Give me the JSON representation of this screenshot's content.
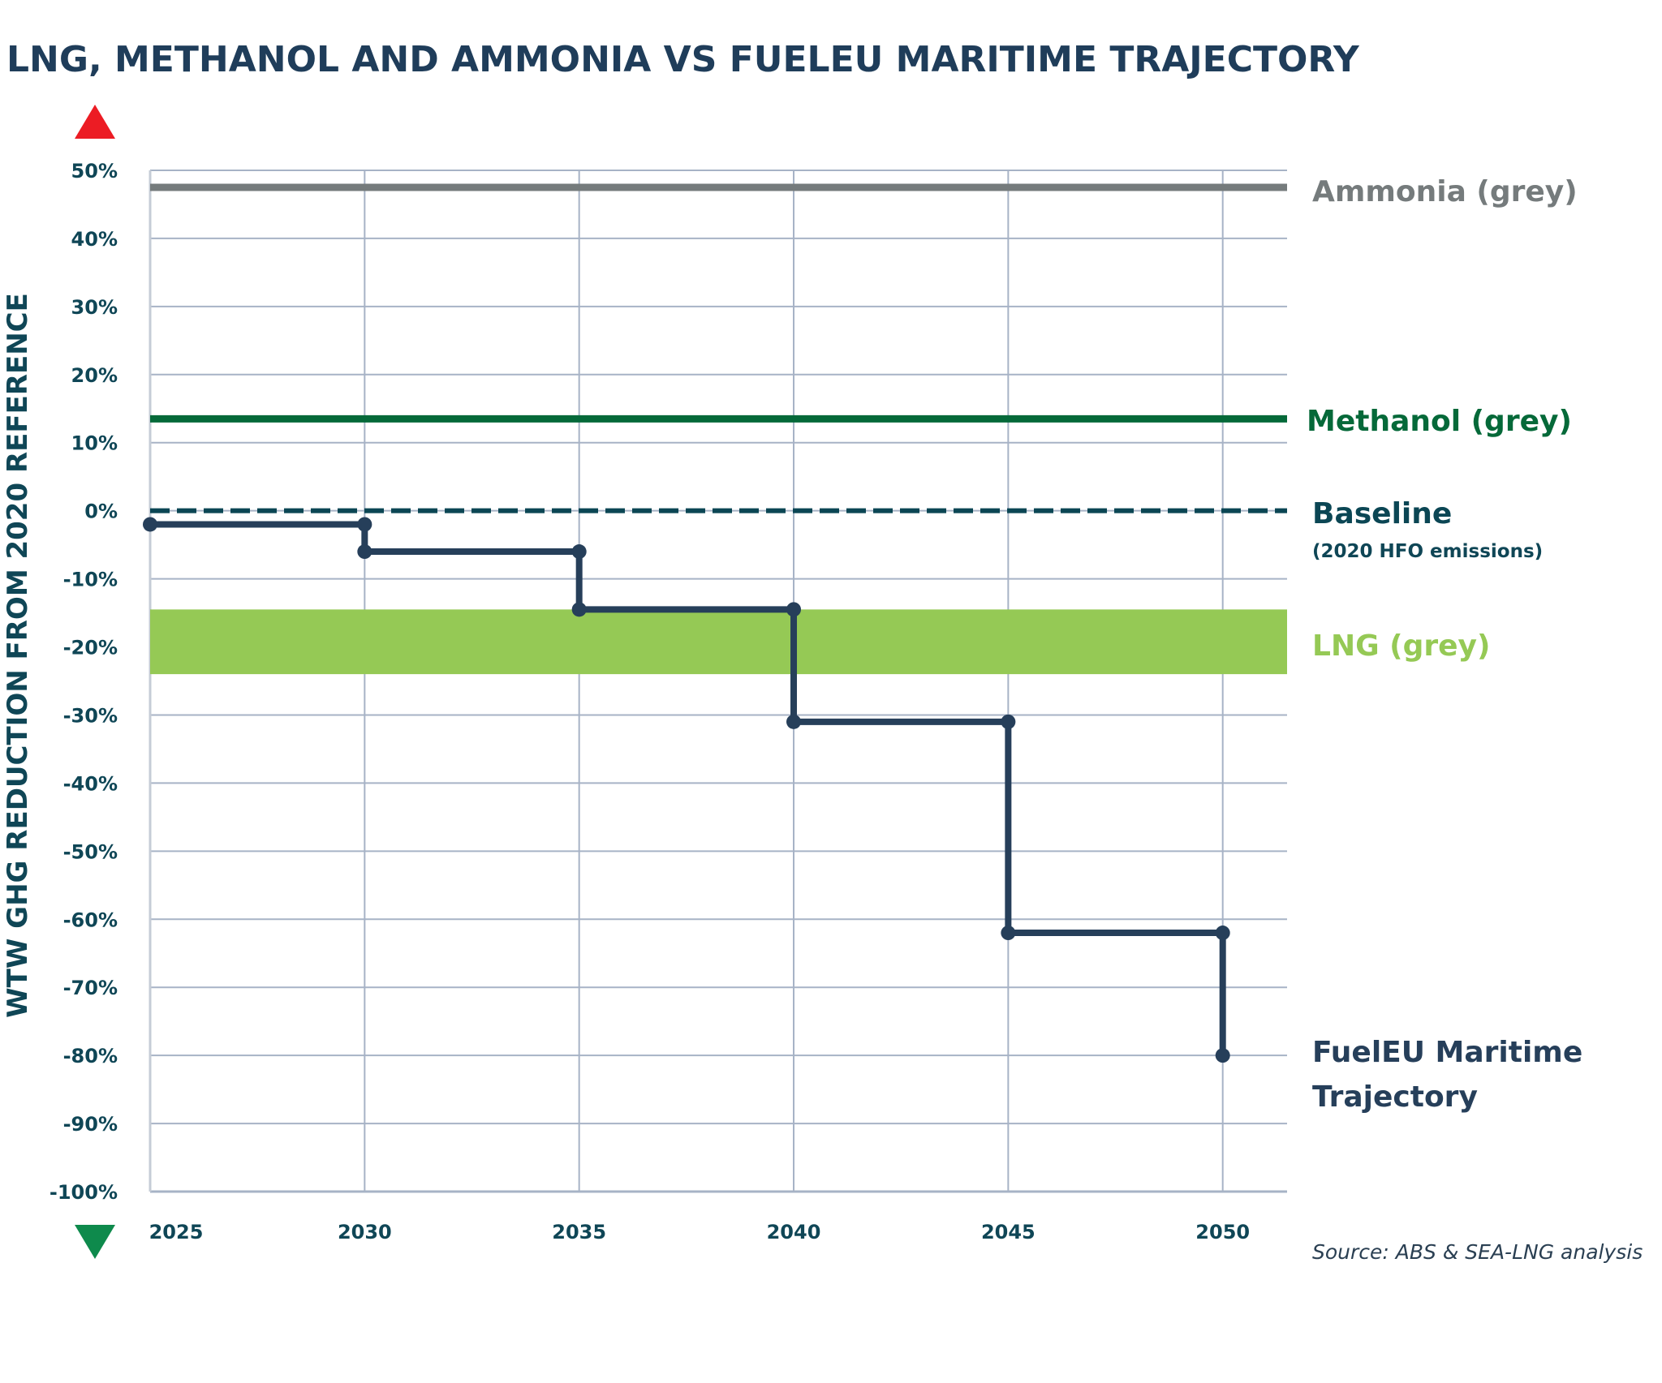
{
  "chart_data": {
    "type": "line",
    "title": "LNG, METHANOL AND AMMONIA VS FUELEU MARITIME TRAJECTORY",
    "ylabel": "WTW GHG REDUCTION FROM 2020 REFERENCE",
    "xlabel": "",
    "ylim": [
      -100,
      50
    ],
    "xlim": [
      2025,
      2051.5
    ],
    "grid": true,
    "y_ticks": [
      "50%",
      "40%",
      "30%",
      "20%",
      "10%",
      "0%",
      "-10%",
      "-20%",
      "-30%",
      "-40%",
      "-50%",
      "-60%",
      "-70%",
      "-80%",
      "-90%",
      "-100%"
    ],
    "y_tick_values": [
      50,
      40,
      30,
      20,
      10,
      0,
      -10,
      -20,
      -30,
      -40,
      -50,
      -60,
      -70,
      -80,
      -90,
      -100
    ],
    "x_ticks": [
      "2025",
      "2030",
      "2035",
      "2040",
      "2045",
      "2050"
    ],
    "x_tick_values": [
      2025,
      2030,
      2035,
      2040,
      2045,
      2050
    ],
    "series": [
      {
        "name": "Ammonia (grey)",
        "kind": "hline",
        "value": 47.5,
        "color": "#757b7c"
      },
      {
        "name": "Methanol (grey)",
        "kind": "hline",
        "value": 13.5,
        "color": "#056939"
      },
      {
        "name": "Baseline",
        "subtitle": "(2020 HFO emissions)",
        "kind": "dashed-hline",
        "value": 0,
        "color": "#0b4654"
      },
      {
        "name": "LNG (grey)",
        "kind": "band",
        "range": [
          -24,
          -14.5
        ],
        "color": "#95c955"
      },
      {
        "name": "FuelEU Maritime Trajectory",
        "name_lines": [
          "FuelEU Maritime",
          "Trajectory"
        ],
        "kind": "step",
        "color": "#263f5a",
        "x": [
          2025,
          2030,
          2035,
          2040,
          2045,
          2050
        ],
        "y": [
          -2,
          -6,
          -14.5,
          -31,
          -62,
          -80
        ]
      }
    ],
    "source": "Source: ABS & SEA-LNG analysis",
    "indicator_up_color": "#ec1c24",
    "indicator_down_color": "#0e8a4c"
  }
}
